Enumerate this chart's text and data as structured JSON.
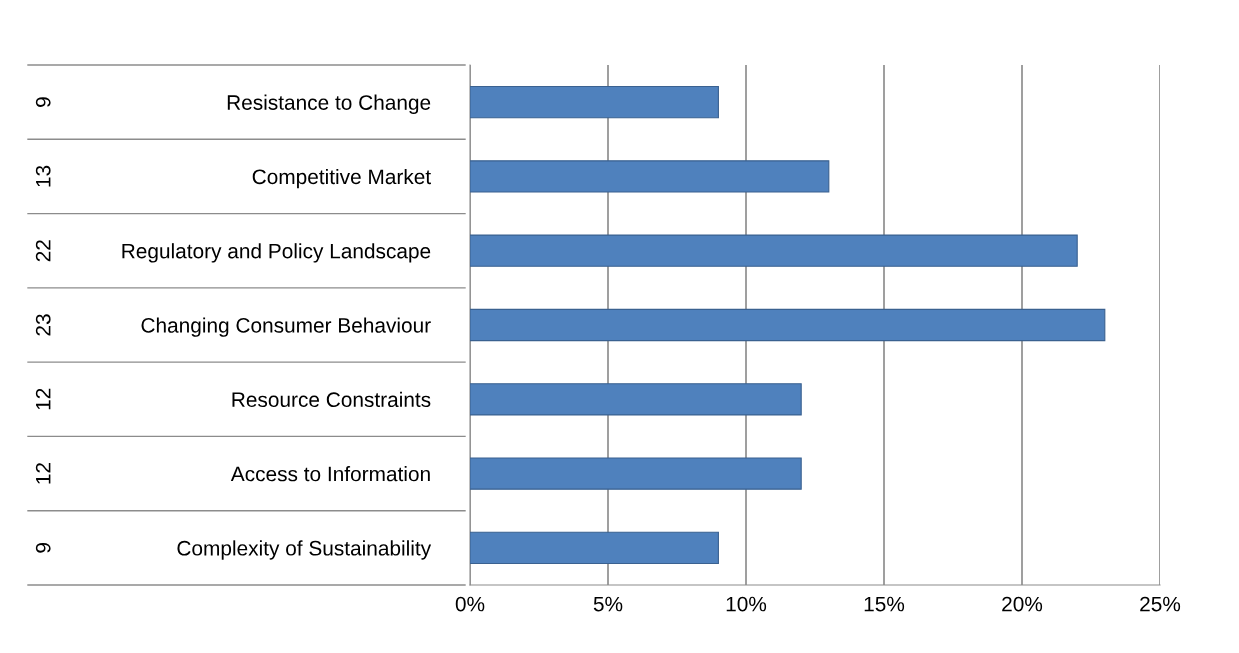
{
  "chart_data": {
    "type": "bar",
    "orientation": "horizontal",
    "categories": [
      "Resistance to Change",
      "Competitive Market",
      "Regulatory and Policy Landscape",
      "Changing Consumer Behaviour",
      "Resource Constraints",
      "Access to Information",
      "Complexity of Sustainability"
    ],
    "values": [
      9,
      13,
      22,
      23,
      12,
      12,
      9
    ],
    "color": "#4f81bd",
    "data_labels": true,
    "xlim": [
      0,
      25
    ],
    "xticks": [
      {
        "value": 0,
        "label": "0%"
      },
      {
        "value": 5,
        "label": "5%"
      },
      {
        "value": 10,
        "label": "10%"
      },
      {
        "value": 15,
        "label": "15%"
      },
      {
        "value": 20,
        "label": "20%"
      },
      {
        "value": 25,
        "label": "25%"
      }
    ],
    "grid": "x",
    "legend": false
  }
}
